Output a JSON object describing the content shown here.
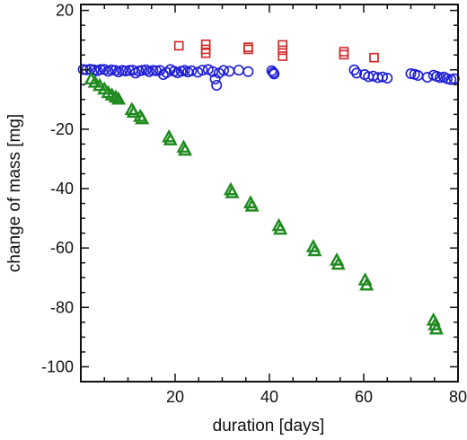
{
  "chart_data": {
    "type": "scatter",
    "xlabel": "duration [days]",
    "ylabel": "change of mass [mg]",
    "xlim": [
      0,
      80
    ],
    "ylim": [
      -105,
      22
    ],
    "xticks": [
      20,
      40,
      60,
      80
    ],
    "yticks": [
      20,
      -20,
      -40,
      -60,
      -80,
      -100
    ],
    "grid": false,
    "legend": "none",
    "series": [
      {
        "marker": "square",
        "color": "#d62020",
        "points": [
          [
            20.8,
            8.1
          ],
          [
            26.5,
            8.6
          ],
          [
            26.5,
            6.9
          ],
          [
            26.5,
            5.6
          ],
          [
            35.5,
            7.6
          ],
          [
            35.5,
            6.9
          ],
          [
            42.8,
            8.4
          ],
          [
            42.8,
            6.6
          ],
          [
            42.8,
            4.6
          ],
          [
            55.8,
            6.1
          ],
          [
            55.8,
            5.1
          ],
          [
            62.2,
            4.1
          ]
        ]
      },
      {
        "marker": "circle",
        "color": "#1c1cd6",
        "points": [
          [
            0.5,
            0.1
          ],
          [
            1.2,
            0.0
          ],
          [
            2.0,
            0.2
          ],
          [
            2.8,
            0.0
          ],
          [
            3.5,
            -0.3
          ],
          [
            4.2,
            0.1
          ],
          [
            5.0,
            0.1
          ],
          [
            5.8,
            -0.5
          ],
          [
            6.5,
            0.0
          ],
          [
            7.3,
            -0.2
          ],
          [
            8.0,
            -0.7
          ],
          [
            8.8,
            -0.2
          ],
          [
            9.5,
            -0.4
          ],
          [
            10.3,
            -0.2
          ],
          [
            11.0,
            -0.1
          ],
          [
            11.6,
            -1.1
          ],
          [
            12.3,
            -0.4
          ],
          [
            13.0,
            -0.2
          ],
          [
            13.8,
            0.0
          ],
          [
            14.5,
            -0.6
          ],
          [
            15.3,
            -0.2
          ],
          [
            16.0,
            -0.3
          ],
          [
            16.8,
            -0.2
          ],
          [
            17.5,
            -1.6
          ],
          [
            18.2,
            -0.9
          ],
          [
            19.0,
            0.1
          ],
          [
            19.8,
            -0.5
          ],
          [
            20.5,
            -1.0
          ],
          [
            21.3,
            -0.5
          ],
          [
            22.0,
            -0.2
          ],
          [
            22.7,
            -0.7
          ],
          [
            23.5,
            -0.3
          ],
          [
            24.8,
            -0.8
          ],
          [
            25.8,
            -0.1
          ],
          [
            27.0,
            0.1
          ],
          [
            28.0,
            -0.6
          ],
          [
            28.5,
            -3.1
          ],
          [
            28.8,
            -5.2
          ],
          [
            29.3,
            -1.1
          ],
          [
            30.3,
            -0.2
          ],
          [
            31.5,
            -0.5
          ],
          [
            33.5,
            -0.1
          ],
          [
            35.5,
            -0.6
          ],
          [
            40.5,
            -0.3
          ],
          [
            40.8,
            -0.9
          ],
          [
            41.0,
            -1.4
          ],
          [
            58.0,
            0.0
          ],
          [
            58.5,
            -1.1
          ],
          [
            60.2,
            -1.6
          ],
          [
            61.0,
            -2.3
          ],
          [
            62.0,
            -2.1
          ],
          [
            63.0,
            -2.6
          ],
          [
            64.0,
            -2.4
          ],
          [
            65.0,
            -2.8
          ],
          [
            70.0,
            -1.3
          ],
          [
            70.8,
            -1.5
          ],
          [
            71.5,
            -1.9
          ],
          [
            73.5,
            -2.5
          ],
          [
            74.8,
            -1.8
          ],
          [
            75.5,
            -2.2
          ],
          [
            76.2,
            -2.6
          ],
          [
            77.0,
            -2.4
          ],
          [
            77.7,
            -3.0
          ],
          [
            78.5,
            -3.3
          ],
          [
            79.2,
            -3.0
          ]
        ]
      },
      {
        "marker": "triangle",
        "color": "#1e8a1e",
        "points": [
          [
            2.2,
            -3.2
          ],
          [
            3.0,
            -4.3
          ],
          [
            4.0,
            -5.4
          ],
          [
            5.0,
            -6.6
          ],
          [
            5.8,
            -7.8
          ],
          [
            6.6,
            -8.6
          ],
          [
            7.4,
            -9.3
          ],
          [
            8.0,
            -10.0
          ],
          [
            10.8,
            -13.5
          ],
          [
            11.2,
            -14.4
          ],
          [
            12.6,
            -15.8
          ],
          [
            13.0,
            -16.6
          ],
          [
            18.7,
            -22.7
          ],
          [
            19.0,
            -23.7
          ],
          [
            21.8,
            -26.2
          ],
          [
            22.1,
            -27.2
          ],
          [
            31.8,
            -40.5
          ],
          [
            32.1,
            -41.5
          ],
          [
            36.0,
            -44.9
          ],
          [
            36.3,
            -46.0
          ],
          [
            42.0,
            -52.6
          ],
          [
            42.3,
            -53.8
          ],
          [
            49.3,
            -59.7
          ],
          [
            49.6,
            -61.0
          ],
          [
            54.3,
            -64.2
          ],
          [
            54.6,
            -65.6
          ],
          [
            60.3,
            -70.9
          ],
          [
            60.6,
            -72.6
          ],
          [
            74.8,
            -84.4
          ],
          [
            75.1,
            -86.0
          ],
          [
            75.4,
            -87.4
          ]
        ]
      }
    ]
  }
}
